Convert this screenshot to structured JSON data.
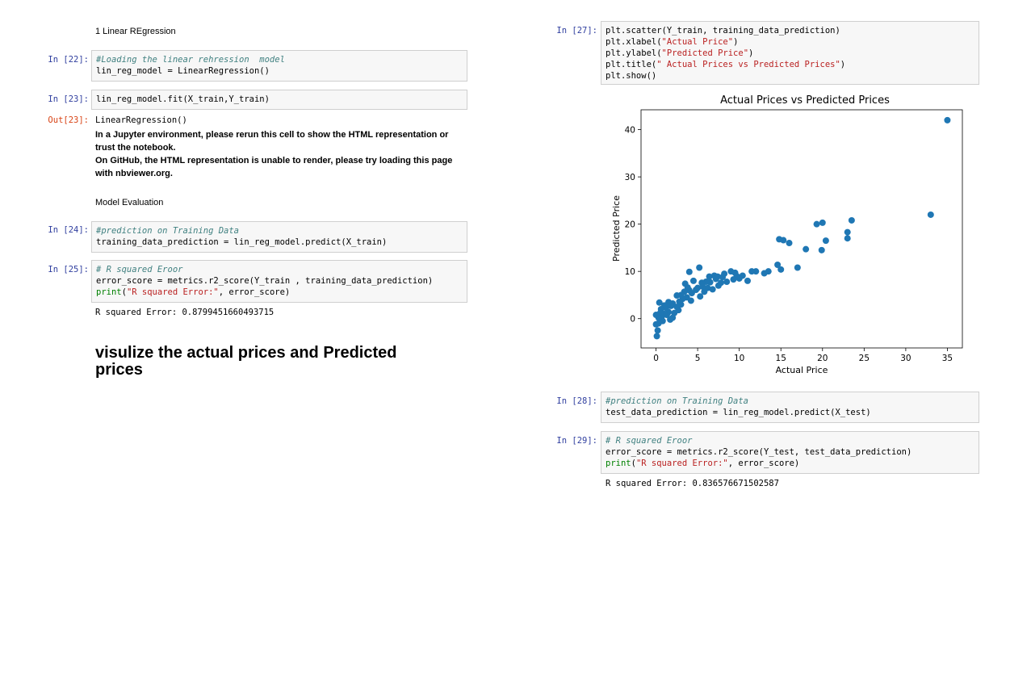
{
  "left": {
    "md1": "1 Linear REgression",
    "cell22": {
      "prompt": "In [22]:",
      "comment": "#Loading the linear rehression  model",
      "code": "lin_reg_model = LinearRegression()"
    },
    "cell23": {
      "prompt": "In [23]:",
      "code": "lin_reg_model.fit(X_train,Y_train)"
    },
    "out23": {
      "prompt": "Out[23]:",
      "repr": "LinearRegression()",
      "note1": "In a Jupyter environment, please rerun this cell to show the HTML representation or trust the notebook.",
      "note2": "On GitHub, the HTML representation is unable to render, please try loading this page with nbviewer.org."
    },
    "md2": "Model Evaluation",
    "cell24": {
      "prompt": "In [24]:",
      "comment": "#prediction on Training Data",
      "code": "training_data_prediction = lin_reg_model.predict(X_train)"
    },
    "cell25": {
      "prompt": "In [25]:",
      "comment": "# R squared Eroor",
      "code1": "error_score = metrics.r2_score(Y_train , training_data_prediction)",
      "print": "print",
      "str": "\"R squared Error:\"",
      "rest": ", error_score)"
    },
    "out25": "R squared Error: 0.8799451660493715",
    "heading": "visulize the actual prices and Predicted prices"
  },
  "right": {
    "cell27": {
      "prompt": "In [27]:",
      "l1": "plt.scatter(Y_train, training_data_prediction)",
      "l2a": "plt.xlabel(",
      "l2s": "\"Actual Price\"",
      "l2b": ")",
      "l3a": "plt.ylabel(",
      "l3s": "\"Predicted Price\"",
      "l3b": ")",
      "l4a": "plt.title(",
      "l4s": "\" Actual Prices vs Predicted Prices\"",
      "l4b": ")",
      "l5": "plt.show()"
    },
    "cell28": {
      "prompt": "In [28]:",
      "comment": "#prediction on Training Data",
      "code": "test_data_prediction = lin_reg_model.predict(X_test)"
    },
    "cell29": {
      "prompt": "In [29]:",
      "comment": "# R squared Eroor",
      "code1": "error_score = metrics.r2_score(Y_test, test_data_prediction)",
      "print": "print",
      "str": "\"R squared Error:\"",
      "rest": ", error_score)"
    },
    "out29": "R squared Error: 0.836576671502587"
  },
  "chart_data": {
    "type": "scatter",
    "title": "Actual Prices vs Predicted Prices",
    "xlabel": "Actual Price",
    "ylabel": "Predicted Price",
    "xlim": [
      -1.8,
      36.8
    ],
    "ylim": [
      -6.2,
      44.2
    ],
    "xticks": [
      0,
      5,
      10,
      15,
      20,
      25,
      30,
      35
    ],
    "yticks": [
      0,
      10,
      20,
      30,
      40
    ],
    "color": "#1f77b4",
    "grid": false,
    "points": [
      [
        35,
        42
      ],
      [
        33,
        22
      ],
      [
        23.5,
        20.8
      ],
      [
        23,
        18.3
      ],
      [
        23,
        17.0
      ],
      [
        20.4,
        16.5
      ],
      [
        19.9,
        14.5
      ],
      [
        20,
        20.3
      ],
      [
        19.3,
        20.0
      ],
      [
        18,
        14.7
      ],
      [
        17.0,
        10.8
      ],
      [
        16.0,
        16.0
      ],
      [
        14.8,
        16.8
      ],
      [
        15.3,
        16.6
      ],
      [
        14.6,
        11.4
      ],
      [
        15.0,
        10.4
      ],
      [
        13.5,
        10.0
      ],
      [
        13.0,
        9.6
      ],
      [
        12.0,
        10.0
      ],
      [
        11.5,
        10.0
      ],
      [
        11.0,
        8.0
      ],
      [
        10.4,
        9.1
      ],
      [
        10.0,
        8.5
      ],
      [
        9.7,
        9.0
      ],
      [
        9.0,
        10.0
      ],
      [
        9.3,
        8.3
      ],
      [
        8.5,
        7.8
      ],
      [
        8.0,
        8.8
      ],
      [
        7.5,
        7.0
      ],
      [
        7.2,
        8.4
      ],
      [
        7.0,
        9.1
      ],
      [
        6.5,
        7.7
      ],
      [
        6.0,
        7.8
      ],
      [
        6.2,
        6.5
      ],
      [
        5.5,
        7.6
      ],
      [
        5.8,
        5.7
      ],
      [
        5.0,
        6.5
      ],
      [
        5.2,
        10.8
      ],
      [
        4.8,
        6.1
      ],
      [
        4.5,
        8.0
      ],
      [
        4.3,
        5.4
      ],
      [
        4.0,
        9.9
      ],
      [
        4.0,
        6.0
      ],
      [
        3.7,
        4.5
      ],
      [
        3.5,
        7.4
      ],
      [
        3.4,
        5.7
      ],
      [
        3.2,
        4.2
      ],
      [
        3.0,
        5.0
      ],
      [
        3.0,
        3.0
      ],
      [
        2.8,
        3.6
      ],
      [
        2.5,
        4.9
      ],
      [
        2.5,
        2.5
      ],
      [
        2.2,
        1.2
      ],
      [
        2.0,
        3.2
      ],
      [
        2.0,
        0.2
      ],
      [
        1.8,
        2.7
      ],
      [
        1.5,
        3.5
      ],
      [
        1.5,
        1.4
      ],
      [
        1.3,
        0.8
      ],
      [
        1.2,
        2.3
      ],
      [
        1.0,
        2.8
      ],
      [
        1.0,
        1.0
      ],
      [
        0.8,
        -0.5
      ],
      [
        0.7,
        0.5
      ],
      [
        0.6,
        2.0
      ],
      [
        0.5,
        1.2
      ],
      [
        0.4,
        3.4
      ],
      [
        0.3,
        -1.0
      ],
      [
        0.3,
        0.2
      ],
      [
        0.2,
        -2.5
      ],
      [
        0.1,
        -3.7
      ],
      [
        0.0,
        -1.2
      ],
      [
        0.0,
        0.8
      ],
      [
        5.6,
        6.8
      ],
      [
        6.8,
        6.2
      ],
      [
        6.4,
        8.9
      ],
      [
        7.8,
        7.6
      ],
      [
        8.2,
        9.5
      ],
      [
        4.2,
        3.8
      ],
      [
        3.8,
        6.6
      ],
      [
        2.7,
        1.8
      ],
      [
        1.7,
        -0.2
      ],
      [
        9.5,
        9.7
      ],
      [
        7.4,
        8.9
      ],
      [
        5.3,
        4.7
      ]
    ]
  }
}
